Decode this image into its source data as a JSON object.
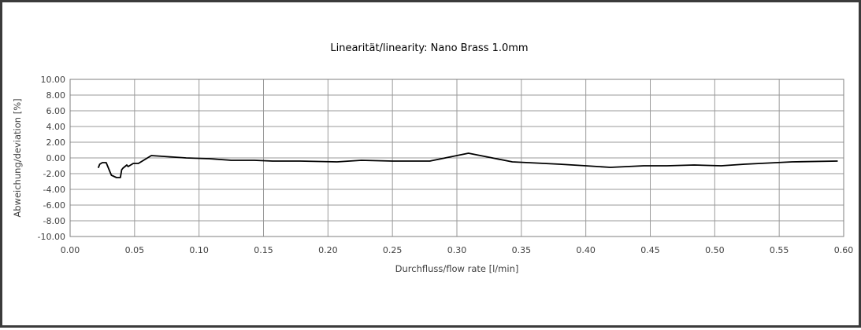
{
  "chart_data": {
    "type": "line",
    "title": "Linearität/linearity: Nano Brass 1.0mm",
    "xlabel": "Durchfluss/flow rate [l/min]",
    "ylabel": "Abweichung/deviation [%]",
    "xlim": [
      0.0,
      0.6
    ],
    "ylim": [
      -10.0,
      10.0
    ],
    "x_ticks": [
      "0.00",
      "0.05",
      "0.10",
      "0.15",
      "0.20",
      "0.25",
      "0.30",
      "0.35",
      "0.40",
      "0.45",
      "0.50",
      "0.55",
      "0.60"
    ],
    "y_ticks": [
      "10.00",
      "8.00",
      "6.00",
      "4.00",
      "2.00",
      "0.00",
      "-2.00",
      "-4.00",
      "-6.00",
      "-8.00",
      "-10.00"
    ],
    "grid": true,
    "legend": "none",
    "line_color": "#000000",
    "series": [
      {
        "x": [
          0.022,
          0.023,
          0.025,
          0.028,
          0.032,
          0.036,
          0.039,
          0.04,
          0.041,
          0.044,
          0.045,
          0.047,
          0.049,
          0.051,
          0.053,
          0.063,
          0.09,
          0.108,
          0.125,
          0.143,
          0.157,
          0.178,
          0.207,
          0.226,
          0.25,
          0.279,
          0.309,
          0.343,
          0.38,
          0.4,
          0.419,
          0.445,
          0.463,
          0.484,
          0.505,
          0.523,
          0.56,
          0.595
        ],
        "y": [
          -1.2,
          -0.8,
          -0.6,
          -0.6,
          -2.2,
          -2.5,
          -2.5,
          -1.5,
          -1.3,
          -0.9,
          -1.1,
          -0.9,
          -0.7,
          -0.7,
          -0.7,
          0.3,
          0.0,
          -0.1,
          -0.3,
          -0.3,
          -0.4,
          -0.4,
          -0.5,
          -0.3,
          -0.4,
          -0.4,
          0.6,
          -0.5,
          -0.8,
          -1.0,
          -1.2,
          -1.0,
          -1.0,
          -0.9,
          -1.0,
          -0.8,
          -0.5,
          -0.4
        ]
      }
    ]
  }
}
